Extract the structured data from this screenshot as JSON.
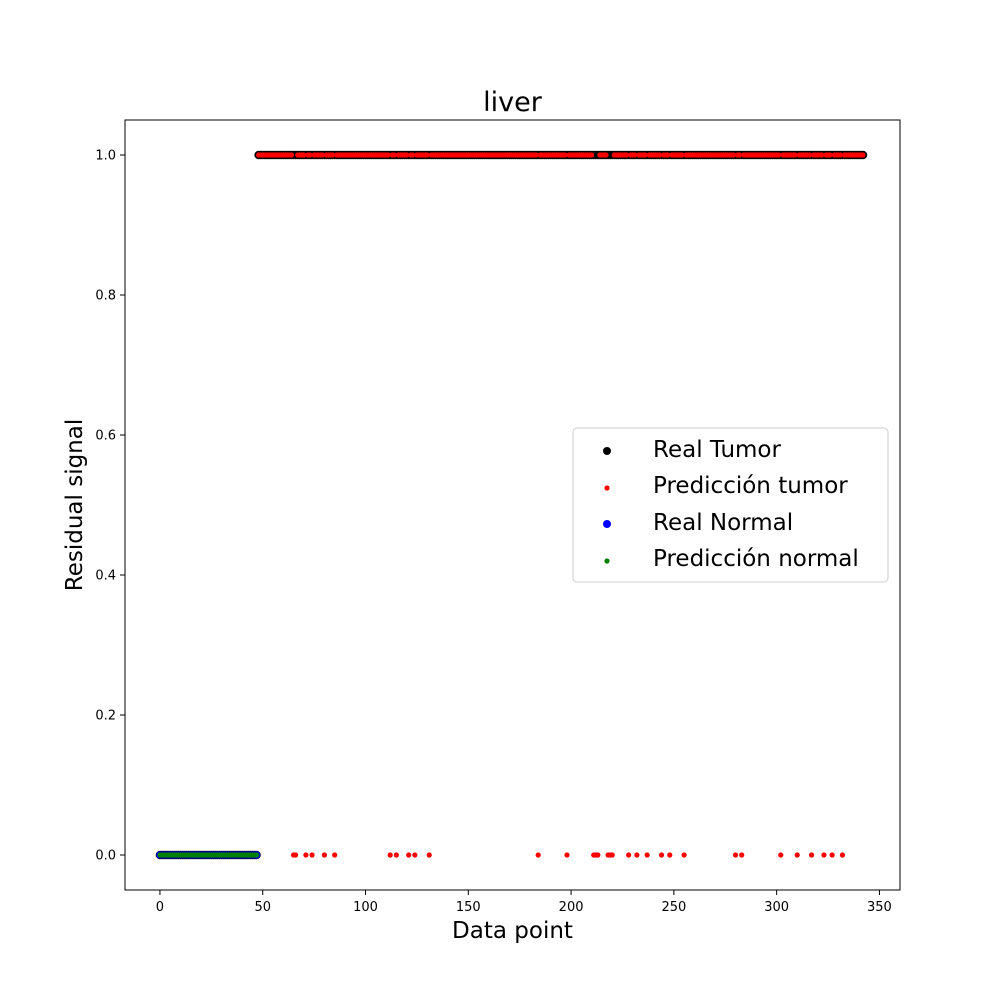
{
  "chart_data": {
    "type": "scatter",
    "title": "liver",
    "xlabel": "Data point",
    "ylabel": "Residual signal",
    "xlim": [
      -17,
      360
    ],
    "ylim": [
      -0.05,
      1.05
    ],
    "xticks": [
      0,
      50,
      100,
      150,
      200,
      250,
      300,
      350
    ],
    "yticks": [
      0.0,
      0.2,
      0.4,
      0.6,
      0.8,
      1.0
    ],
    "xtick_labels": [
      "0",
      "50",
      "100",
      "150",
      "200",
      "250",
      "300",
      "350"
    ],
    "ytick_labels": [
      "0.0",
      "0.2",
      "0.4",
      "0.6",
      "0.8",
      "1.0"
    ],
    "grid": false,
    "legend_position": "center-right",
    "series": [
      {
        "name": "Real Tumor",
        "color": "#000000",
        "size": "large",
        "x_range": [
          48,
          342
        ],
        "y": 1.0
      },
      {
        "name": "Predicción tumor",
        "color": "#ff0000",
        "size": "small",
        "x_range": [
          48,
          342
        ],
        "y": 1.0,
        "exclude_x": [
          65,
          66,
          71,
          74,
          80,
          85,
          112,
          115,
          121,
          124,
          131,
          184,
          198,
          211,
          212,
          213,
          218,
          219,
          220,
          228,
          232,
          237,
          244,
          248,
          255,
          280,
          283,
          302,
          310,
          317,
          323,
          327,
          332
        ],
        "outliers": [
          {
            "x": 65,
            "y": 0
          },
          {
            "x": 66,
            "y": 0
          },
          {
            "x": 71,
            "y": 0
          },
          {
            "x": 74,
            "y": 0
          },
          {
            "x": 80,
            "y": 0
          },
          {
            "x": 85,
            "y": 0
          },
          {
            "x": 112,
            "y": 0
          },
          {
            "x": 115,
            "y": 0
          },
          {
            "x": 121,
            "y": 0
          },
          {
            "x": 124,
            "y": 0
          },
          {
            "x": 131,
            "y": 0
          },
          {
            "x": 184,
            "y": 0
          },
          {
            "x": 198,
            "y": 0
          },
          {
            "x": 211,
            "y": 0
          },
          {
            "x": 212,
            "y": 0
          },
          {
            "x": 213,
            "y": 0
          },
          {
            "x": 218,
            "y": 0
          },
          {
            "x": 219,
            "y": 0
          },
          {
            "x": 220,
            "y": 0
          },
          {
            "x": 228,
            "y": 0
          },
          {
            "x": 232,
            "y": 0
          },
          {
            "x": 237,
            "y": 0
          },
          {
            "x": 244,
            "y": 0
          },
          {
            "x": 248,
            "y": 0
          },
          {
            "x": 255,
            "y": 0
          },
          {
            "x": 280,
            "y": 0
          },
          {
            "x": 283,
            "y": 0
          },
          {
            "x": 302,
            "y": 0
          },
          {
            "x": 310,
            "y": 0
          },
          {
            "x": 317,
            "y": 0
          },
          {
            "x": 323,
            "y": 0
          },
          {
            "x": 327,
            "y": 0
          },
          {
            "x": 332,
            "y": 0
          }
        ]
      },
      {
        "name": "Real Normal",
        "color": "#0000ff",
        "size": "large",
        "x_range": [
          0,
          47
        ],
        "y": 0.0
      },
      {
        "name": "Predicción normal",
        "color": "#008000",
        "size": "small",
        "x_range": [
          0,
          47
        ],
        "y": 0.0
      }
    ]
  }
}
